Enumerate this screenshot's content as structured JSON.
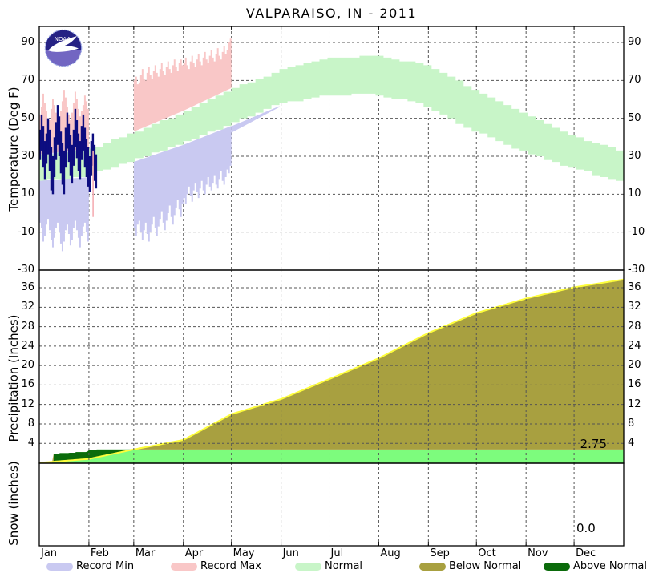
{
  "title": "VALPARAISO, IN - 2011",
  "chart_data": {
    "type": "area",
    "title": "VALPARAISO, IN - 2011",
    "x_axis": {
      "tick_labels": [
        "Jan",
        "Feb",
        "Mar",
        "Apr",
        "May",
        "Jun",
        "Jul",
        "Aug",
        "Sep",
        "Oct",
        "Nov",
        "Dec"
      ],
      "month_start_doy": [
        0,
        31,
        59,
        90,
        120,
        151,
        181,
        212,
        243,
        273,
        304,
        334,
        365
      ]
    },
    "panels": {
      "temperature": {
        "ylabel": "Temperature (Deg F)",
        "yticks": [
          90,
          70,
          50,
          30,
          10,
          -10,
          -30
        ],
        "gridline_values": [
          90,
          70,
          50,
          30,
          10,
          -10
        ],
        "ylim": [
          -30,
          98
        ],
        "normal_high_month_starts": [
          31,
          34,
          43,
          54,
          66,
          76,
          82,
          83,
          77,
          64,
          51,
          40,
          32
        ],
        "normal_low_month_starts": [
          17,
          19,
          27,
          36,
          46,
          57,
          62,
          63,
          57,
          44,
          33,
          24,
          17
        ],
        "record_max_jan": [
          52,
          56,
          63,
          58,
          54,
          50,
          49,
          55,
          60,
          57,
          53,
          48,
          50,
          54,
          59,
          65,
          61,
          56,
          52,
          49,
          53,
          58,
          64,
          60,
          55,
          51,
          54,
          57,
          62,
          59,
          55
        ],
        "record_min_jan": [
          -5,
          -8,
          -15,
          -12,
          -6,
          -3,
          -9,
          -14,
          -18,
          -13,
          -8,
          -5,
          -10,
          -16,
          -20,
          -15,
          -9,
          -6,
          -11,
          -17,
          -14,
          -8,
          -4,
          -9,
          -13,
          -18,
          -12,
          -7,
          -5,
          -10,
          -15
        ],
        "record_max_mar_apr": [
          70,
          72,
          68,
          69,
          73,
          76,
          71,
          70,
          74,
          77,
          73,
          71,
          75,
          78,
          74,
          72,
          76,
          79,
          75,
          73,
          77,
          80,
          76,
          74,
          78,
          81,
          77,
          75,
          79,
          81,
          78,
          79,
          82,
          78,
          76,
          80,
          83,
          79,
          77,
          81,
          84,
          80,
          78,
          82,
          85,
          81,
          79,
          83,
          86,
          82,
          80,
          84,
          87,
          83,
          81,
          85,
          88,
          84,
          86,
          90,
          92
        ],
        "record_min_mar_apr": [
          -8,
          -12,
          -6,
          -4,
          -10,
          -14,
          -9,
          -5,
          -11,
          -15,
          -10,
          -6,
          -2,
          -8,
          -12,
          -7,
          -3,
          1,
          -5,
          -9,
          -4,
          0,
          4,
          -2,
          -6,
          -1,
          3,
          7,
          2,
          -2,
          5,
          8,
          5,
          10,
          14,
          9,
          6,
          12,
          16,
          11,
          8,
          13,
          17,
          12,
          10,
          15,
          19,
          14,
          12,
          16,
          20,
          15,
          13,
          18,
          22,
          17,
          15,
          19,
          23,
          21,
          25
        ],
        "record_min_may_strip": {
          "start_doy": 120,
          "end_doy": 151,
          "max_depth_deg": 3
        },
        "observed": {
          "start_doy": 0,
          "high": [
            44,
            52,
            46,
            38,
            42,
            50,
            44,
            35,
            30,
            40,
            48,
            57,
            51,
            43,
            37,
            33,
            45,
            53,
            47,
            41,
            36,
            44,
            55,
            49,
            42,
            38,
            46,
            52,
            45,
            39,
            35,
            30,
            38,
            42,
            36,
            31
          ],
          "low": [
            28,
            33,
            24,
            18,
            26,
            31,
            22,
            12,
            10,
            19,
            28,
            36,
            30,
            21,
            15,
            10,
            24,
            34,
            27,
            20,
            16,
            25,
            35,
            29,
            22,
            18,
            28,
            33,
            24,
            19,
            14,
            11,
            20,
            25,
            17,
            13
          ]
        },
        "record_event_bar": {
          "doy": 33,
          "top": 33,
          "bottom": -2
        }
      },
      "precipitation": {
        "ylabel": "Precipitation (Inches)",
        "yticks": [
          36,
          32,
          28,
          24,
          20,
          16,
          12,
          8,
          4
        ],
        "ylim": [
          0,
          39.6
        ],
        "normal_cumulative_month_starts": [
          0,
          0.8,
          2.75,
          4.7,
          10,
          13.1,
          17.2,
          21.5,
          26.7,
          30.8,
          33.8,
          36.1,
          37.7
        ],
        "actual_cumulative_steps": [
          [
            0,
            0
          ],
          [
            4,
            0.05
          ],
          [
            8,
            0.1
          ],
          [
            9,
            1.9
          ],
          [
            13,
            2.0
          ],
          [
            19,
            2.05
          ],
          [
            23,
            2.2
          ],
          [
            30,
            2.3
          ],
          [
            31,
            2.6
          ],
          [
            34,
            2.7
          ],
          [
            36,
            2.75
          ],
          [
            365,
            2.75
          ]
        ],
        "total_label": "2.75"
      },
      "snow": {
        "ylabel": "Snow (inches)",
        "total_label": "0.0"
      }
    },
    "legend": [
      {
        "label": "Record Min",
        "color": "#c9c9f1"
      },
      {
        "label": "Record Max",
        "color": "#f9c7c7"
      },
      {
        "label": "Normal",
        "color": "#c8f5c8"
      },
      {
        "label": "Below Normal",
        "color": "#a8a040"
      },
      {
        "label": "Above Normal",
        "color": "#0b6b0b"
      }
    ],
    "colors": {
      "record_min_band": "#c9c9f1",
      "record_max_band": "#f9c7c7",
      "normal_band": "#c8f5c8",
      "observed_bars": "#0d0d80",
      "record_event_bar": "#f5aeb4",
      "below_normal_fill": "#a8a040",
      "actual_precip_fill": "#7dfc7d",
      "above_normal_fill": "#0b6b0b",
      "normal_precip_line": "#fdfd3c",
      "grid": "#555555",
      "border": "#000000",
      "logo_navy": "#262284",
      "logo_purple": "#7266c2",
      "logo_ring": "#97a6e6"
    },
    "logo": {
      "text": "NOAA"
    }
  }
}
